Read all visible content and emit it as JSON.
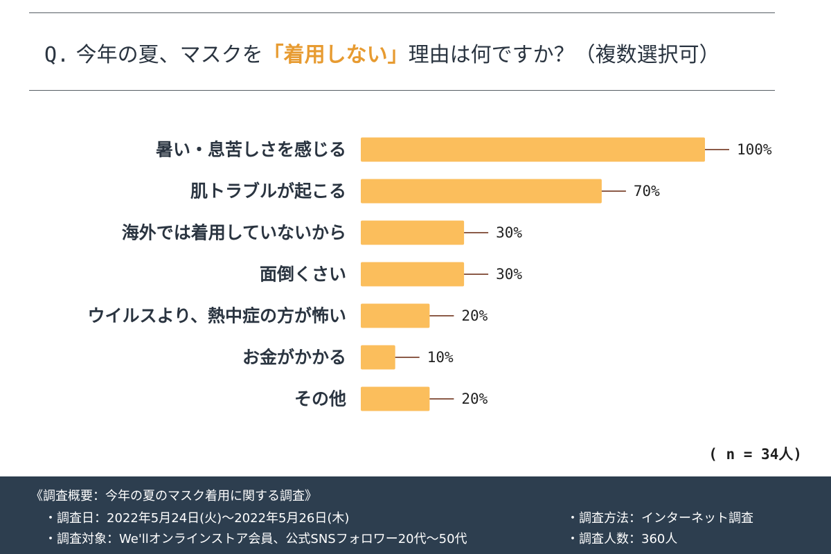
{
  "header": {
    "prefix": "Q.",
    "before": "今年の夏、マスクを",
    "highlight": "「着用しない」",
    "after": "理由は何ですか？（複数選択可）"
  },
  "chart_data": {
    "type": "bar",
    "orientation": "horizontal",
    "title": "Q. 今年の夏、マスクを「着用しない」理由は何ですか？（複数選択可）",
    "categories": [
      "暑い・息苦しさを感じる",
      "肌トラブルが起こる",
      "海外では着用していないから",
      "面倒くさい",
      "ウイルスより、熱中症の方が怖い",
      "お金がかかる",
      "その他"
    ],
    "values": [
      100,
      70,
      30,
      30,
      20,
      10,
      20
    ],
    "value_labels": [
      "100%",
      "70%",
      "30%",
      "30%",
      "20%",
      "10%",
      "20%"
    ],
    "unit": "%",
    "xlim": [
      0,
      100
    ],
    "grid": false,
    "legend": "none",
    "bar_color": "#fbbe5c",
    "leader_color": "#8b5a47"
  },
  "sample_note": "( n = 34人)",
  "footer": {
    "title": "《調査概要：今年の夏のマスク着用に関する調査》",
    "date": "・調査日：2022年5月24日(火)〜2022年5月26日(木)",
    "target": "・調査対象：We'llオンラインストア会員、公式SNSフォロワー20代〜50代",
    "method": "・調査方法：インターネット調査",
    "count": "・調査人数：360人"
  }
}
